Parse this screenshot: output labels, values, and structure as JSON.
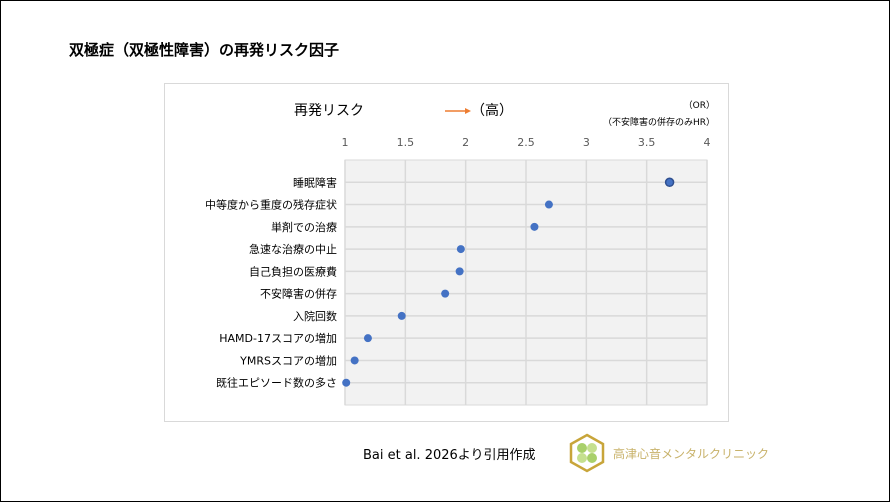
{
  "title": "双極症（双極性障害）の再発リスク因子",
  "citation": "Bai et al. 2026より引用作成",
  "clinic_name": "高津心音メンタルクリニック",
  "chart_data": {
    "type": "scatter",
    "header": "再発リスク",
    "header_suffix": "（高）",
    "unit_note_1": "（OR）",
    "unit_note_2": "（不安障害の併存のみHR）",
    "xlim": [
      1,
      4
    ],
    "x_ticks": [
      "1",
      "1.5",
      "2",
      "2.5",
      "3",
      "3.5",
      "4"
    ],
    "grid": true,
    "categories": [
      "睡眠障害",
      "中等度から重度の残存症状",
      "単剤での治療",
      "急速な治療の中止",
      "自己負担の医療費",
      "不安障害の併存",
      "入院回数",
      "HAMD-17スコアの増加",
      "YMRSスコアの増加",
      "既往エピソード数の多さ"
    ],
    "values": [
      3.69,
      2.69,
      2.57,
      1.96,
      1.95,
      1.83,
      1.47,
      1.19,
      1.08,
      1.01
    ],
    "colors": {
      "point": "#4472c4",
      "highlight": "#2f4f8f",
      "arrow": "#ed7d31",
      "plot_bg": "#f2f2f2",
      "grid": "#d9d9d9"
    }
  }
}
